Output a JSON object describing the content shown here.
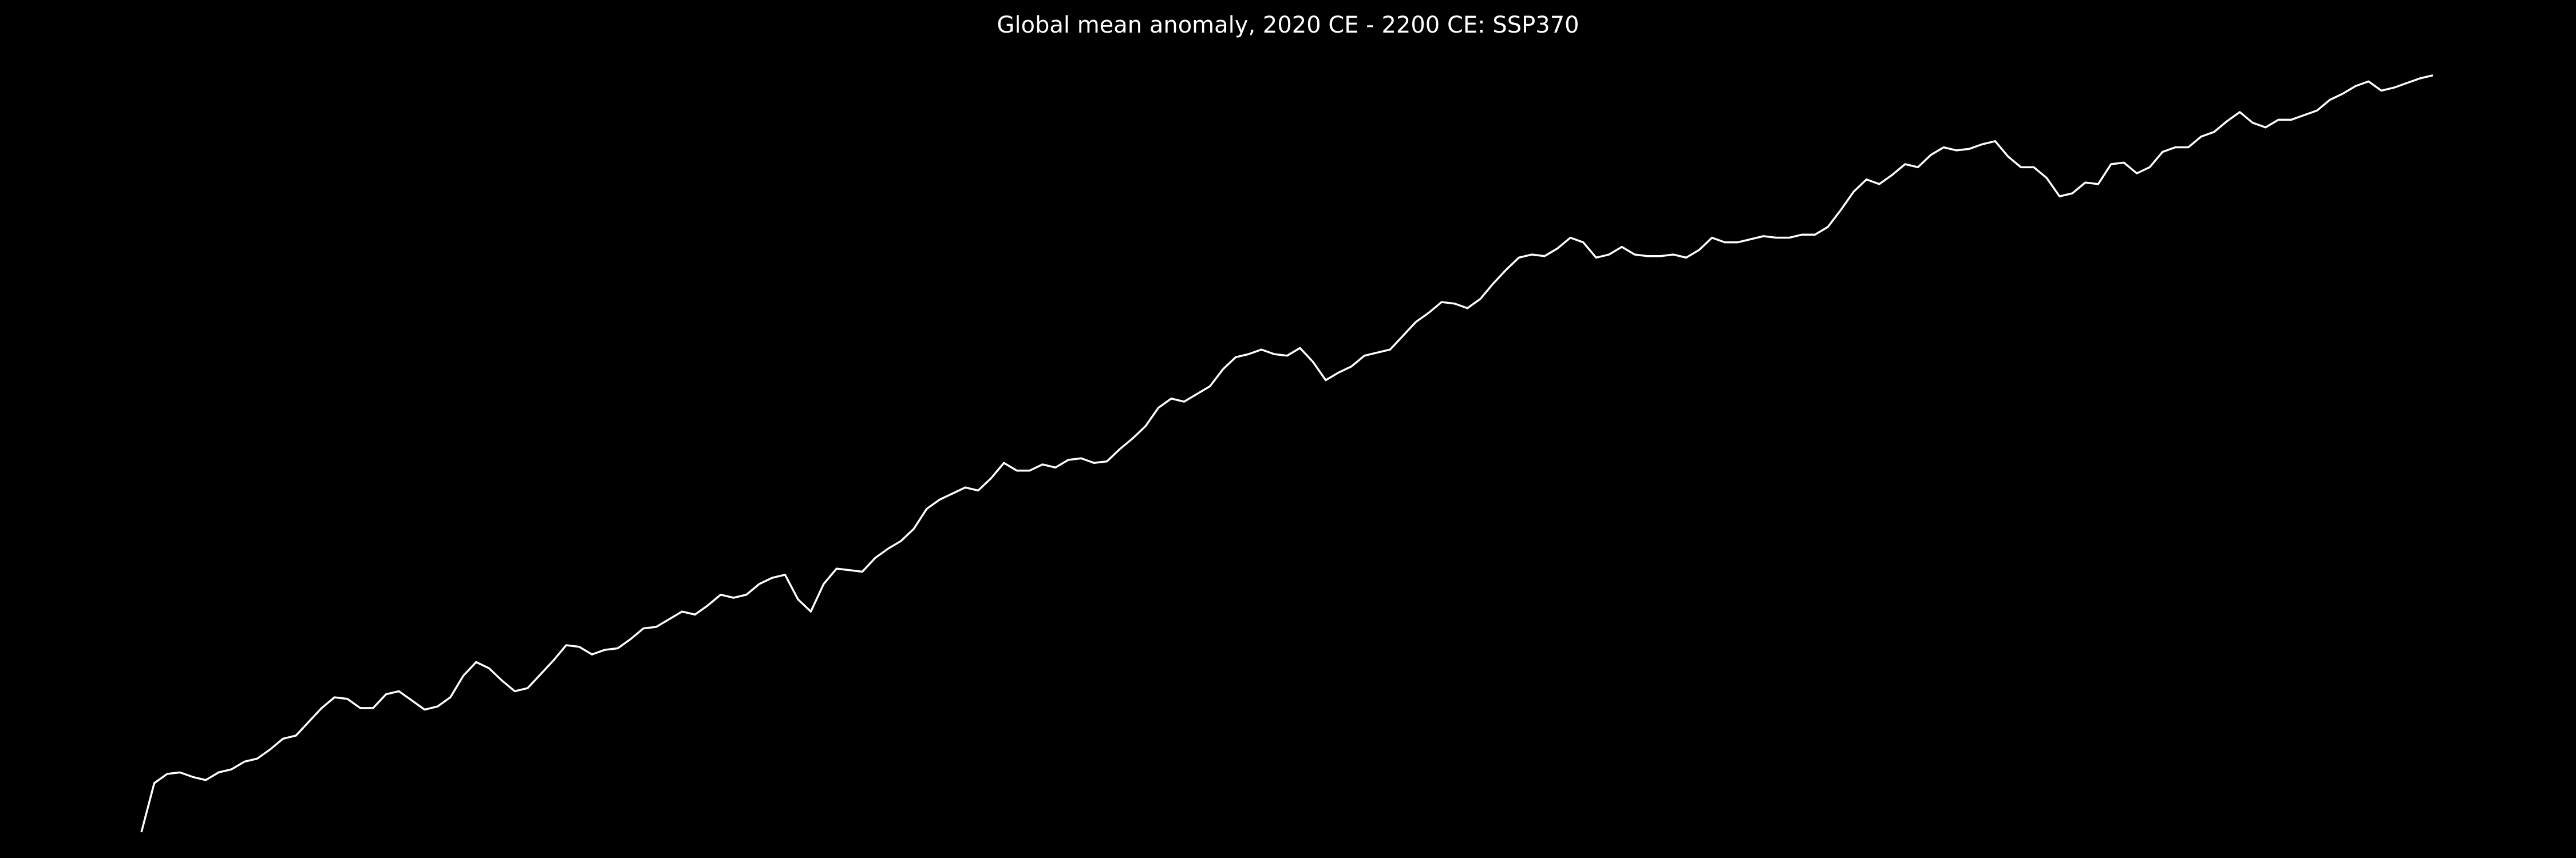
{
  "chart_data": {
    "type": "line",
    "title": "Global mean anomaly, 2020 CE - 2200 CE: SSP370",
    "x": [
      2020,
      2021,
      2022,
      2023,
      2024,
      2025,
      2026,
      2027,
      2028,
      2029,
      2030,
      2031,
      2032,
      2033,
      2034,
      2035,
      2036,
      2037,
      2038,
      2039,
      2040,
      2041,
      2042,
      2043,
      2044,
      2045,
      2046,
      2047,
      2048,
      2049,
      2050,
      2051,
      2052,
      2053,
      2054,
      2055,
      2056,
      2057,
      2058,
      2059,
      2060,
      2061,
      2062,
      2063,
      2064,
      2065,
      2066,
      2067,
      2068,
      2069,
      2070,
      2071,
      2072,
      2073,
      2074,
      2075,
      2076,
      2077,
      2078,
      2079,
      2080,
      2081,
      2082,
      2083,
      2084,
      2085,
      2086,
      2087,
      2088,
      2089,
      2090,
      2091,
      2092,
      2093,
      2094,
      2095,
      2096,
      2097,
      2098,
      2099,
      2100,
      2101,
      2102,
      2103,
      2104,
      2105,
      2106,
      2107,
      2108,
      2109,
      2110,
      2111,
      2112,
      2113,
      2114,
      2115,
      2116,
      2117,
      2118,
      2119,
      2120,
      2121,
      2122,
      2123,
      2124,
      2125,
      2126,
      2127,
      2128,
      2129,
      2130,
      2131,
      2132,
      2133,
      2134,
      2135,
      2136,
      2137,
      2138,
      2139,
      2140,
      2141,
      2142,
      2143,
      2144,
      2145,
      2146,
      2147,
      2148,
      2149,
      2150,
      2151,
      2152,
      2153,
      2154,
      2155,
      2156,
      2157,
      2158,
      2159,
      2160,
      2161,
      2162,
      2163,
      2164,
      2165,
      2166,
      2167,
      2168,
      2169,
      2170,
      2171,
      2172,
      2173,
      2174,
      2175,
      2176,
      2177,
      2178,
      2179,
      2180,
      2181,
      2182,
      2183,
      2184,
      2185,
      2186,
      2187,
      2188,
      2189,
      2190,
      2191,
      2192,
      2193,
      2194,
      2195,
      2196,
      2197,
      2198
    ],
    "values": [
      1.2,
      1.52,
      1.58,
      1.59,
      1.56,
      1.54,
      1.59,
      1.61,
      1.66,
      1.68,
      1.74,
      1.81,
      1.83,
      1.92,
      2.01,
      2.08,
      2.07,
      2.01,
      2.01,
      2.1,
      2.12,
      2.06,
      2.0,
      2.02,
      2.08,
      2.22,
      2.31,
      2.27,
      2.19,
      2.12,
      2.14,
      2.23,
      2.32,
      2.42,
      2.41,
      2.36,
      2.39,
      2.4,
      2.46,
      2.53,
      2.54,
      2.59,
      2.64,
      2.62,
      2.68,
      2.75,
      2.73,
      2.75,
      2.82,
      2.86,
      2.88,
      2.72,
      2.64,
      2.82,
      2.92,
      2.91,
      2.9,
      2.99,
      3.05,
      3.1,
      3.18,
      3.31,
      3.37,
      3.41,
      3.45,
      3.43,
      3.51,
      3.61,
      3.56,
      3.56,
      3.6,
      3.58,
      3.63,
      3.64,
      3.61,
      3.62,
      3.7,
      3.77,
      3.85,
      3.97,
      4.03,
      4.01,
      4.06,
      4.11,
      4.22,
      4.3,
      4.32,
      4.35,
      4.32,
      4.31,
      4.36,
      4.27,
      4.15,
      4.2,
      4.24,
      4.31,
      4.33,
      4.35,
      4.44,
      4.53,
      4.59,
      4.66,
      4.65,
      4.62,
      4.68,
      4.78,
      4.87,
      4.95,
      4.97,
      4.96,
      5.01,
      5.08,
      5.05,
      4.95,
      4.97,
      5.02,
      4.97,
      4.96,
      4.96,
      4.97,
      4.95,
      5.0,
      5.08,
      5.05,
      5.05,
      5.07,
      5.09,
      5.08,
      5.08,
      5.1,
      5.1,
      5.15,
      5.26,
      5.38,
      5.46,
      5.43,
      5.49,
      5.56,
      5.54,
      5.62,
      5.67,
      5.65,
      5.66,
      5.69,
      5.71,
      5.61,
      5.54,
      5.54,
      5.47,
      5.35,
      5.37,
      5.44,
      5.43,
      5.56,
      5.57,
      5.5,
      5.54,
      5.64,
      5.67,
      5.67,
      5.74,
      5.77,
      5.84,
      5.9,
      5.83,
      5.8,
      5.85,
      5.85,
      5.88,
      5.91,
      5.98,
      6.02,
      6.07,
      6.1,
      6.04,
      6.06,
      6.09,
      6.12,
      6.14
    ],
    "color": "#ffffff",
    "xlim": [
      2020,
      2198
    ],
    "ylim": [
      1.05,
      6.4
    ]
  }
}
